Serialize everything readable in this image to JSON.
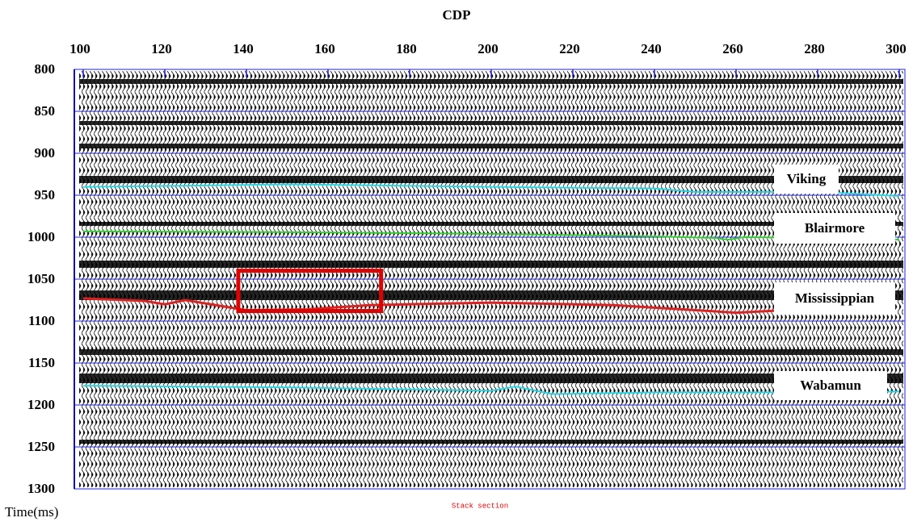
{
  "chart_data": {
    "type": "seismic",
    "title": "CDP",
    "y_label": "Time(ms)",
    "caption": "Stack section",
    "xlim": [
      100,
      300
    ],
    "ylim": [
      800,
      1300
    ],
    "xticks": [
      100,
      120,
      140,
      160,
      180,
      200,
      220,
      240,
      260,
      280,
      300
    ],
    "yticks": [
      800,
      850,
      900,
      950,
      1000,
      1050,
      1100,
      1150,
      1200,
      1250,
      1300
    ],
    "grid": true,
    "grid_color": "#2020e0",
    "horizons": [
      {
        "label": "Viking",
        "color": "#20d8e8",
        "x": [
          100,
          120,
          150,
          200,
          240,
          250,
          260,
          280,
          300
        ],
        "values": [
          940,
          939,
          937,
          940,
          942,
          946,
          946,
          946,
          951
        ]
      },
      {
        "label": "Blairmore",
        "color": "#30d030",
        "x": [
          100,
          150,
          200,
          240,
          255,
          258,
          262,
          280,
          300
        ],
        "values": [
          993,
          994,
          996,
          999,
          1001,
          1003,
          1000,
          1001,
          1003
        ]
      },
      {
        "label": "Mississippian",
        "color": "#e02020",
        "x": [
          100,
          115,
          120,
          125,
          140,
          155,
          170,
          200,
          230,
          260,
          280
        ],
        "values": [
          1073,
          1076,
          1080,
          1075,
          1087,
          1086,
          1081,
          1078,
          1081,
          1090,
          1085
        ]
      },
      {
        "label": "Wabamun",
        "color": "#20d8e8",
        "x": [
          100,
          150,
          200,
          206,
          215,
          240,
          270,
          300
        ],
        "values": [
          1177,
          1179,
          1183,
          1178,
          1187,
          1185,
          1185,
          1184
        ]
      }
    ],
    "highlight_box": {
      "color": "#e00000",
      "x": [
        138,
        173
      ],
      "y": [
        1040,
        1088
      ]
    }
  }
}
